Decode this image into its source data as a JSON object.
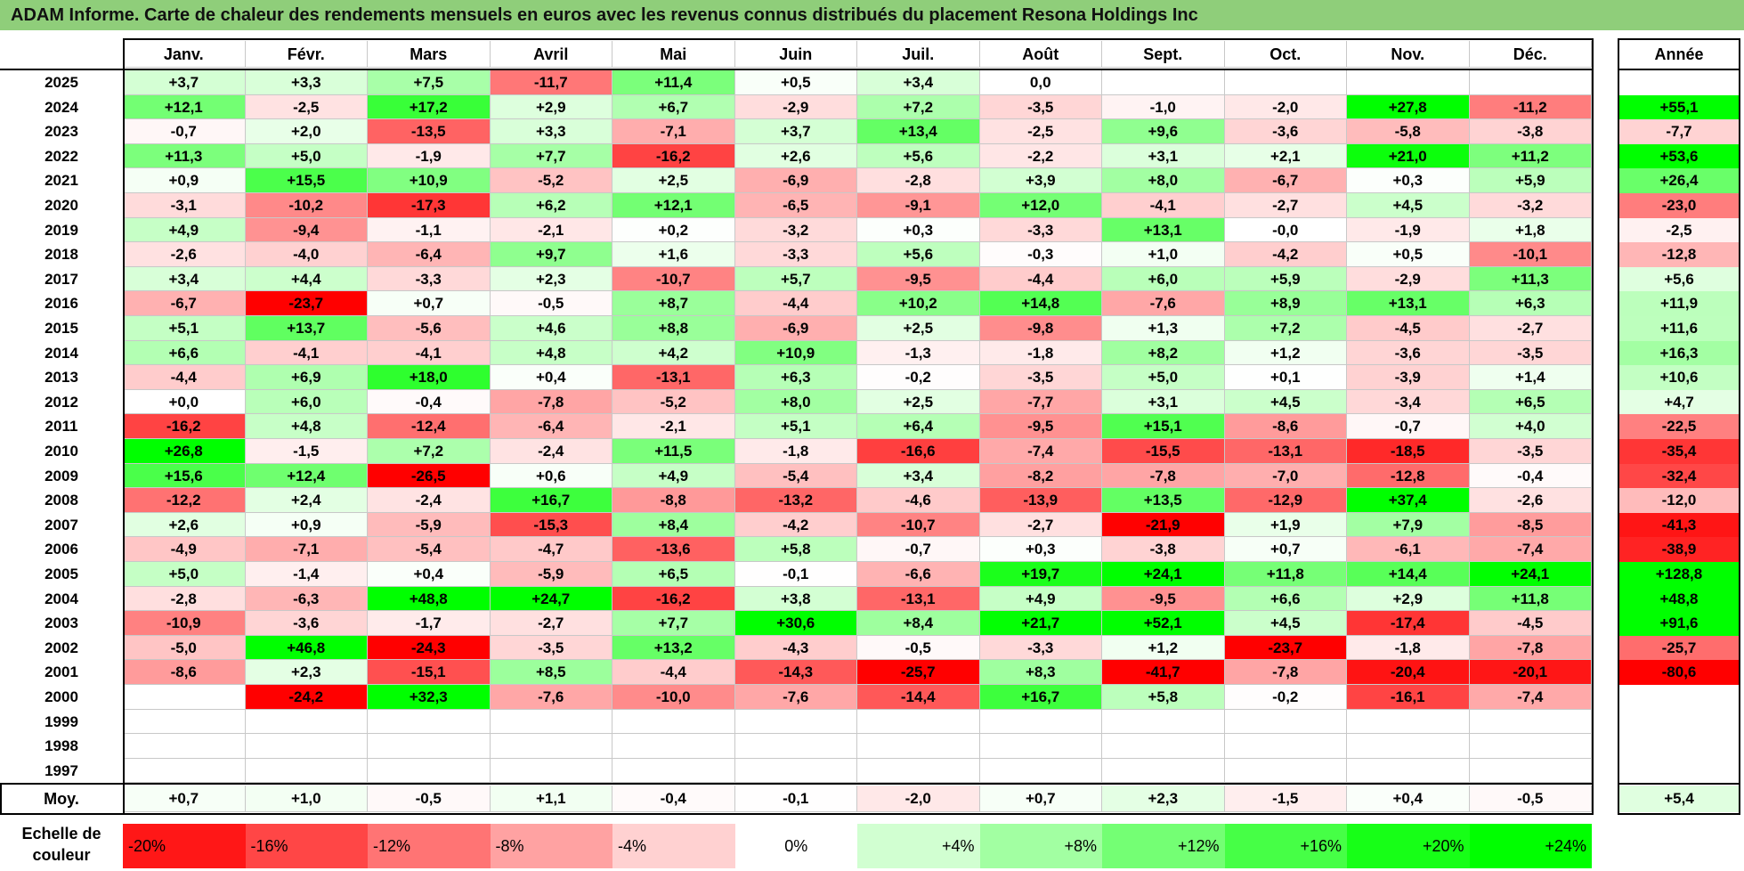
{
  "title": "ADAM Informe. Carte de chaleur des rendements mensuels en euros avec les revenus connus distribués du placement Resona Holdings Inc",
  "chart_data": {
    "type": "heatmap",
    "months": [
      "Janv.",
      "Févr.",
      "Mars",
      "Avril",
      "Mai",
      "Juin",
      "Juil.",
      "Août",
      "Sept.",
      "Oct.",
      "Nov.",
      "Déc."
    ],
    "year_header": "Année",
    "rows": [
      {
        "year": "2025",
        "values": [
          "+3,7",
          "+3,3",
          "+7,5",
          "-11,7",
          "+11,4",
          "+0,5",
          "+3,4",
          "0,0",
          "",
          "",
          "",
          ""
        ],
        "annual": ""
      },
      {
        "year": "2024",
        "values": [
          "+12,1",
          "-2,5",
          "+17,2",
          "+2,9",
          "+6,7",
          "-2,9",
          "+7,2",
          "-3,5",
          "-1,0",
          "-2,0",
          "+27,8",
          "-11,2"
        ],
        "annual": "+55,1"
      },
      {
        "year": "2023",
        "values": [
          "-0,7",
          "+2,0",
          "-13,5",
          "+3,3",
          "-7,1",
          "+3,7",
          "+13,4",
          "-2,5",
          "+9,6",
          "-3,6",
          "-5,8",
          "-3,8"
        ],
        "annual": "-7,7"
      },
      {
        "year": "2022",
        "values": [
          "+11,3",
          "+5,0",
          "-1,9",
          "+7,7",
          "-16,2",
          "+2,6",
          "+5,6",
          "-2,2",
          "+3,1",
          "+2,1",
          "+21,0",
          "+11,2"
        ],
        "annual": "+53,6"
      },
      {
        "year": "2021",
        "values": [
          "+0,9",
          "+15,5",
          "+10,9",
          "-5,2",
          "+2,5",
          "-6,9",
          "-2,8",
          "+3,9",
          "+8,0",
          "-6,7",
          "+0,3",
          "+5,9"
        ],
        "annual": "+26,4"
      },
      {
        "year": "2020",
        "values": [
          "-3,1",
          "-10,2",
          "-17,3",
          "+6,2",
          "+12,1",
          "-6,5",
          "-9,1",
          "+12,0",
          "-4,1",
          "-2,7",
          "+4,5",
          "-3,2"
        ],
        "annual": "-23,0"
      },
      {
        "year": "2019",
        "values": [
          "+4,9",
          "-9,4",
          "-1,1",
          "-2,1",
          "+0,2",
          "-3,2",
          "+0,3",
          "-3,3",
          "+13,1",
          "-0,0",
          "-1,9",
          "+1,8"
        ],
        "annual": "-2,5"
      },
      {
        "year": "2018",
        "values": [
          "-2,6",
          "-4,0",
          "-6,4",
          "+9,7",
          "+1,6",
          "-3,3",
          "+5,6",
          "-0,3",
          "+1,0",
          "-4,2",
          "+0,5",
          "-10,1"
        ],
        "annual": "-12,8"
      },
      {
        "year": "2017",
        "values": [
          "+3,4",
          "+4,4",
          "-3,3",
          "+2,3",
          "-10,7",
          "+5,7",
          "-9,5",
          "-4,4",
          "+6,0",
          "+5,9",
          "-2,9",
          "+11,3"
        ],
        "annual": "+5,6"
      },
      {
        "year": "2016",
        "values": [
          "-6,7",
          "-23,7",
          "+0,7",
          "-0,5",
          "+8,7",
          "-4,4",
          "+10,2",
          "+14,8",
          "-7,6",
          "+8,9",
          "+13,1",
          "+6,3"
        ],
        "annual": "+11,9"
      },
      {
        "year": "2015",
        "values": [
          "+5,1",
          "+13,7",
          "-5,6",
          "+4,6",
          "+8,8",
          "-6,9",
          "+2,5",
          "-9,8",
          "+1,3",
          "+7,2",
          "-4,5",
          "-2,7"
        ],
        "annual": "+11,6"
      },
      {
        "year": "2014",
        "values": [
          "+6,6",
          "-4,1",
          "-4,1",
          "+4,8",
          "+4,2",
          "+10,9",
          "-1,3",
          "-1,8",
          "+8,2",
          "+1,2",
          "-3,6",
          "-3,5"
        ],
        "annual": "+16,3"
      },
      {
        "year": "2013",
        "values": [
          "-4,4",
          "+6,9",
          "+18,0",
          "+0,4",
          "-13,1",
          "+6,3",
          "-0,2",
          "-3,5",
          "+5,0",
          "+0,1",
          "-3,9",
          "+1,4"
        ],
        "annual": "+10,6"
      },
      {
        "year": "2012",
        "values": [
          "+0,0",
          "+6,0",
          "-0,4",
          "-7,8",
          "-5,2",
          "+8,0",
          "+2,5",
          "-7,7",
          "+3,1",
          "+4,5",
          "-3,4",
          "+6,5"
        ],
        "annual": "+4,7"
      },
      {
        "year": "2011",
        "values": [
          "-16,2",
          "+4,8",
          "-12,4",
          "-6,4",
          "-2,1",
          "+5,1",
          "+6,4",
          "-9,5",
          "+15,1",
          "-8,6",
          "-0,7",
          "+4,0"
        ],
        "annual": "-22,5"
      },
      {
        "year": "2010",
        "values": [
          "+26,8",
          "-1,5",
          "+7,2",
          "-2,4",
          "+11,5",
          "-1,8",
          "-16,6",
          "-7,4",
          "-15,5",
          "-13,1",
          "-18,5",
          "-3,5"
        ],
        "annual": "-35,4"
      },
      {
        "year": "2009",
        "values": [
          "+15,6",
          "+12,4",
          "-26,5",
          "+0,6",
          "+4,9",
          "-5,4",
          "+3,4",
          "-8,2",
          "-7,8",
          "-7,0",
          "-12,8",
          "-0,4"
        ],
        "annual": "-32,4"
      },
      {
        "year": "2008",
        "values": [
          "-12,2",
          "+2,4",
          "-2,4",
          "+16,7",
          "-8,8",
          "-13,2",
          "-4,6",
          "-13,9",
          "+13,5",
          "-12,9",
          "+37,4",
          "-2,6"
        ],
        "annual": "-12,0"
      },
      {
        "year": "2007",
        "values": [
          "+2,6",
          "+0,9",
          "-5,9",
          "-15,3",
          "+8,4",
          "-4,2",
          "-10,7",
          "-2,7",
          "-21,9",
          "+1,9",
          "+7,9",
          "-8,5"
        ],
        "annual": "-41,3"
      },
      {
        "year": "2006",
        "values": [
          "-4,9",
          "-7,1",
          "-5,4",
          "-4,7",
          "-13,6",
          "+5,8",
          "-0,7",
          "+0,3",
          "-3,8",
          "+0,7",
          "-6,1",
          "-7,4"
        ],
        "annual": "-38,9"
      },
      {
        "year": "2005",
        "values": [
          "+5,0",
          "-1,4",
          "+0,4",
          "-5,9",
          "+6,5",
          "-0,1",
          "-6,6",
          "+19,7",
          "+24,1",
          "+11,8",
          "+14,4",
          "+24,1"
        ],
        "annual": "+128,8"
      },
      {
        "year": "2004",
        "values": [
          "-2,8",
          "-6,3",
          "+48,8",
          "+24,7",
          "-16,2",
          "+3,8",
          "-13,1",
          "+4,9",
          "-9,5",
          "+6,6",
          "+2,9",
          "+11,8"
        ],
        "annual": "+48,8"
      },
      {
        "year": "2003",
        "values": [
          "-10,9",
          "-3,6",
          "-1,7",
          "-2,7",
          "+7,7",
          "+30,6",
          "+8,4",
          "+21,7",
          "+52,1",
          "+4,5",
          "-17,4",
          "-4,5"
        ],
        "annual": "+91,6"
      },
      {
        "year": "2002",
        "values": [
          "-5,0",
          "+46,8",
          "-24,3",
          "-3,5",
          "+13,2",
          "-4,3",
          "-0,5",
          "-3,3",
          "+1,2",
          "-23,7",
          "-1,8",
          "-7,8"
        ],
        "annual": "-25,7"
      },
      {
        "year": "2001",
        "values": [
          "-8,6",
          "+2,3",
          "-15,1",
          "+8,5",
          "-4,4",
          "-14,3",
          "-25,7",
          "+8,3",
          "-41,7",
          "-7,8",
          "-20,4",
          "-20,1"
        ],
        "annual": "-80,6"
      },
      {
        "year": "2000",
        "values": [
          "",
          "-24,2",
          "+32,3",
          "-7,6",
          "-10,0",
          "-7,6",
          "-14,4",
          "+16,7",
          "+5,8",
          "-0,2",
          "-16,1",
          "-7,4"
        ],
        "annual": ""
      },
      {
        "year": "1999",
        "values": [
          "",
          "",
          "",
          "",
          "",
          "",
          "",
          "",
          "",
          "",
          "",
          ""
        ],
        "annual": ""
      },
      {
        "year": "1998",
        "values": [
          "",
          "",
          "",
          "",
          "",
          "",
          "",
          "",
          "",
          "",
          "",
          ""
        ],
        "annual": ""
      },
      {
        "year": "1997",
        "values": [
          "",
          "",
          "",
          "",
          "",
          "",
          "",
          "",
          "",
          "",
          "",
          ""
        ],
        "annual": ""
      }
    ],
    "average": {
      "label": "Moy.",
      "values": [
        "+0,7",
        "+1,0",
        "-0,5",
        "+1,1",
        "-0,4",
        "-0,1",
        "-2,0",
        "+0,7",
        "+2,3",
        "-1,5",
        "+0,4",
        "-0,5"
      ],
      "annual": "+5,4"
    },
    "scale": {
      "label_line1": "Echelle de",
      "label_line2": "couleur",
      "steps": [
        {
          "label": "-20%",
          "value": -20
        },
        {
          "label": "-16%",
          "value": -16
        },
        {
          "label": "-12%",
          "value": -12
        },
        {
          "label": "-8%",
          "value": -8
        },
        {
          "label": "-4%",
          "value": -4
        },
        {
          "label": "0%",
          "value": 0
        },
        {
          "label": "+4%",
          "value": 4
        },
        {
          "label": "+8%",
          "value": 8
        },
        {
          "label": "+12%",
          "value": 12
        },
        {
          "label": "+16%",
          "value": 16
        },
        {
          "label": "+20%",
          "value": 20
        },
        {
          "label": "+24%",
          "value": 24
        }
      ]
    },
    "colors": {
      "negative": "#ff0000",
      "neutral": "#ffffff",
      "positive": "#00ff00"
    }
  }
}
